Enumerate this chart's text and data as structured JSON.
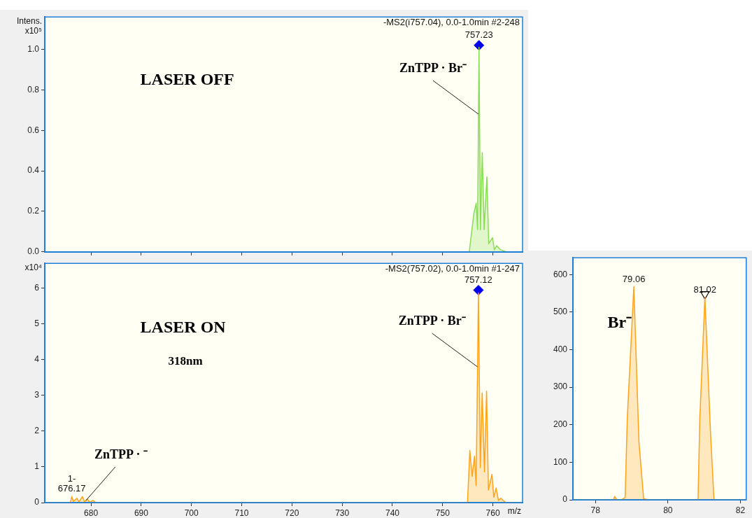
{
  "chart_data": [
    {
      "type": "area",
      "subtitle": "-MS2(i757.04), 0.0-1.0min #2-248",
      "ylabel": "Intens. x10⁵",
      "xlim": [
        670.8,
        765.9
      ],
      "xticks": [
        680,
        690,
        700,
        710,
        720,
        730,
        740,
        750,
        760
      ],
      "ylim": [
        0,
        1.16
      ],
      "yticks": [
        {
          "value": 0,
          "label": "0.0"
        },
        {
          "value": 0.2,
          "label": "0.2"
        },
        {
          "value": 0.4,
          "label": "0.4"
        },
        {
          "value": 0.6,
          "label": "0.6"
        },
        {
          "value": 0.8,
          "label": "0.8"
        },
        {
          "value": 1,
          "label": "1.0"
        }
      ],
      "tick_labels": "y",
      "legend": false,
      "annotations": [
        "LASER OFF",
        {
          "text": "ZnTPP · Br⁻",
          "x": 757.127,
          "y": 0.68
        },
        {
          "text": "757.23",
          "x": 757.23,
          "y": 1.02
        }
      ],
      "series": [
        {
          "color": "#88dd55",
          "x": [
            670.8,
            755.29,
            756.21,
            756.67,
            756.95,
            757.23,
            757.51,
            757.88,
            758.25,
            758.8,
            759.17,
            759.92,
            760.29,
            760.75,
            761.54,
            762.69,
            765.9
          ],
          "values": [
            0,
            0,
            0.19,
            0.24,
            0.11,
            1.01,
            0.11,
            0.49,
            0.11,
            0.37,
            0.04,
            0.07,
            0.01,
            0.03,
            0.01,
            0,
            0
          ]
        },
        {
          "type": "scatter",
          "marker": "diamond",
          "color": "#0000ee",
          "x": [
            757.23
          ],
          "values": [
            1.02
          ]
        }
      ]
    },
    {
      "type": "area",
      "subtitle": "-MS2(757.02), 0.0-1.0min #1-247",
      "ylabel": "x10⁴",
      "xlabel": "m/z",
      "xlim": [
        670.8,
        765.9
      ],
      "xticks": [
        680,
        690,
        700,
        710,
        720,
        730,
        740,
        750,
        760
      ],
      "ylim": [
        0,
        6.7
      ],
      "yticks": [
        0,
        1,
        2,
        3,
        4,
        5,
        6
      ],
      "legend": false,
      "annotations": [
        "LASER ON",
        "318nm",
        {
          "text": "ZnTPP · Br⁻",
          "x": 756.943,
          "y": 3.8
        },
        {
          "text": "ZnTPP · ⁻",
          "x": 679,
          "y": 0.06
        },
        {
          "text": "757.12",
          "x": 757.12,
          "y": 5.95
        },
        {
          "text": "1-\n676.17",
          "x": 676.17,
          "y": 0.17
        }
      ],
      "series": [
        {
          "color": "#ffa31a",
          "x": [
            670.8,
            675.9,
            676.17,
            676.5,
            677.2,
            677.6,
            678.3,
            678.7,
            679.3,
            679.7,
            680.4,
            681,
            754.94,
            755.41,
            755.87,
            756.33,
            756.66,
            757.12,
            757.49,
            757.86,
            758.32,
            758.74,
            759.11,
            759.81,
            760.18,
            760.64,
            761.1,
            761.56,
            762.58,
            765.9
          ],
          "values": [
            0,
            0,
            0.17,
            0.03,
            0.12,
            0.02,
            0.17,
            0.02,
            0.1,
            0.01,
            0.06,
            0,
            0,
            1.46,
            0.73,
            1.3,
            0.48,
            5.87,
            0.98,
            3.07,
            0.86,
            3.12,
            0.35,
            0.79,
            0.15,
            0.41,
            0.06,
            0.12,
            0,
            0
          ]
        },
        {
          "type": "scatter",
          "marker": "diamond",
          "color": "#0000ee",
          "x": [
            757.12
          ],
          "values": [
            5.95
          ]
        }
      ]
    },
    {
      "type": "area",
      "xlim": [
        77.38,
        82.16
      ],
      "xticks": [
        78,
        80,
        82
      ],
      "ylim": [
        0,
        645
      ],
      "yticks": [
        0,
        100,
        200,
        300,
        400,
        500,
        600
      ],
      "legend": false,
      "annotations": [
        "Br⁻",
        {
          "text": "79.06",
          "x": 79.06,
          "y": 568
        },
        {
          "text": "81.02",
          "x": 81.02,
          "y": 540
        }
      ],
      "series": [
        {
          "color": "#ffa31a",
          "x": [
            77.38,
            78.5,
            78.53,
            78.59,
            78.72,
            78.82,
            78.88,
            79.06,
            79.2,
            79.33,
            79.46,
            80.83,
            80.88,
            81.02,
            81.17,
            81.27,
            82.16
          ],
          "values": [
            0,
            0,
            9,
            0,
            0,
            6,
            218,
            568,
            156,
            3,
            0,
            0,
            218,
            540,
            187,
            0,
            0
          ]
        },
        {
          "type": "scatter",
          "marker": "triangle",
          "color": "#000000",
          "x": [
            81.02
          ],
          "values": [
            548
          ]
        }
      ]
    }
  ]
}
